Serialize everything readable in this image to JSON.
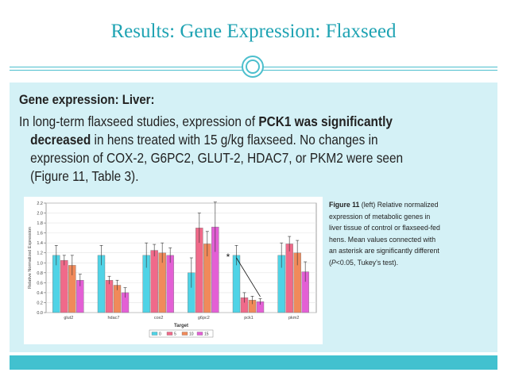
{
  "slide": {
    "title": "Results: Gene Expression: Flaxseed",
    "heading": "Gene expression: Liver:",
    "paragraph": {
      "l1_a": "In long-term flaxseed studies, expression of ",
      "l1_b": "PCK1 was significantly",
      "l2_a": "decreased",
      "l2_b": " in hens treated with 15 g/kg flaxseed. No changes in",
      "l3": "expression of COX-2, G6PC2, GLUT-2, HDAC7, or PKM2 were seen",
      "l4": "(Figure 11, Table 3)."
    },
    "caption": {
      "fig_label": "Figure 11",
      "l1_rest": " (left) Relative normalized",
      "l2": "expression of metabolic genes in",
      "l3": "liver tissue of control or flaxseed-fed",
      "l4": "hens. Mean values connected with",
      "l5": "an asterisk are significantly different",
      "l6_a": "(",
      "l6_p": "P",
      "l6_b": "<0.05, Tukey’s test)."
    }
  },
  "colors": {
    "accent": "#1fa3b3",
    "panel": "#d4f1f6",
    "band": "#42c1cf"
  },
  "chart_data": {
    "type": "bar",
    "title": "",
    "xlabel": "Target",
    "ylabel": "Relative Normalized Expression",
    "ylim": [
      0,
      2.2
    ],
    "yticks": [
      "0.0",
      "0.2",
      "0.4",
      "0.6",
      "0.8",
      "1.0",
      "1.2",
      "1.4",
      "1.6",
      "1.8",
      "2.0",
      "2.2"
    ],
    "categories": [
      "glut2",
      "hdac7",
      "cox2",
      "g6pc2",
      "pck1",
      "pkm2"
    ],
    "legend_position": "bottom",
    "series": [
      {
        "name": "0",
        "color": "#4fd3e6",
        "values": [
          1.15,
          1.15,
          1.15,
          0.8,
          1.15,
          1.15
        ],
        "errors": [
          0.2,
          0.2,
          0.25,
          0.3,
          0.2,
          0.25
        ]
      },
      {
        "name": "5",
        "color": "#f06a8a",
        "values": [
          1.05,
          0.65,
          1.25,
          1.7,
          0.3,
          1.38
        ],
        "errors": [
          0.1,
          0.08,
          0.12,
          0.3,
          0.1,
          0.15
        ]
      },
      {
        "name": "10",
        "color": "#f08a5a",
        "values": [
          0.95,
          0.55,
          1.2,
          1.38,
          0.25,
          1.2
        ],
        "errors": [
          0.2,
          0.1,
          0.2,
          0.25,
          0.08,
          0.25
        ]
      },
      {
        "name": "15",
        "color": "#e35fd5",
        "values": [
          0.65,
          0.4,
          1.15,
          1.72,
          0.22,
          0.82
        ],
        "errors": [
          0.12,
          0.1,
          0.15,
          0.5,
          0.06,
          0.2
        ]
      }
    ],
    "annotation": "*"
  }
}
